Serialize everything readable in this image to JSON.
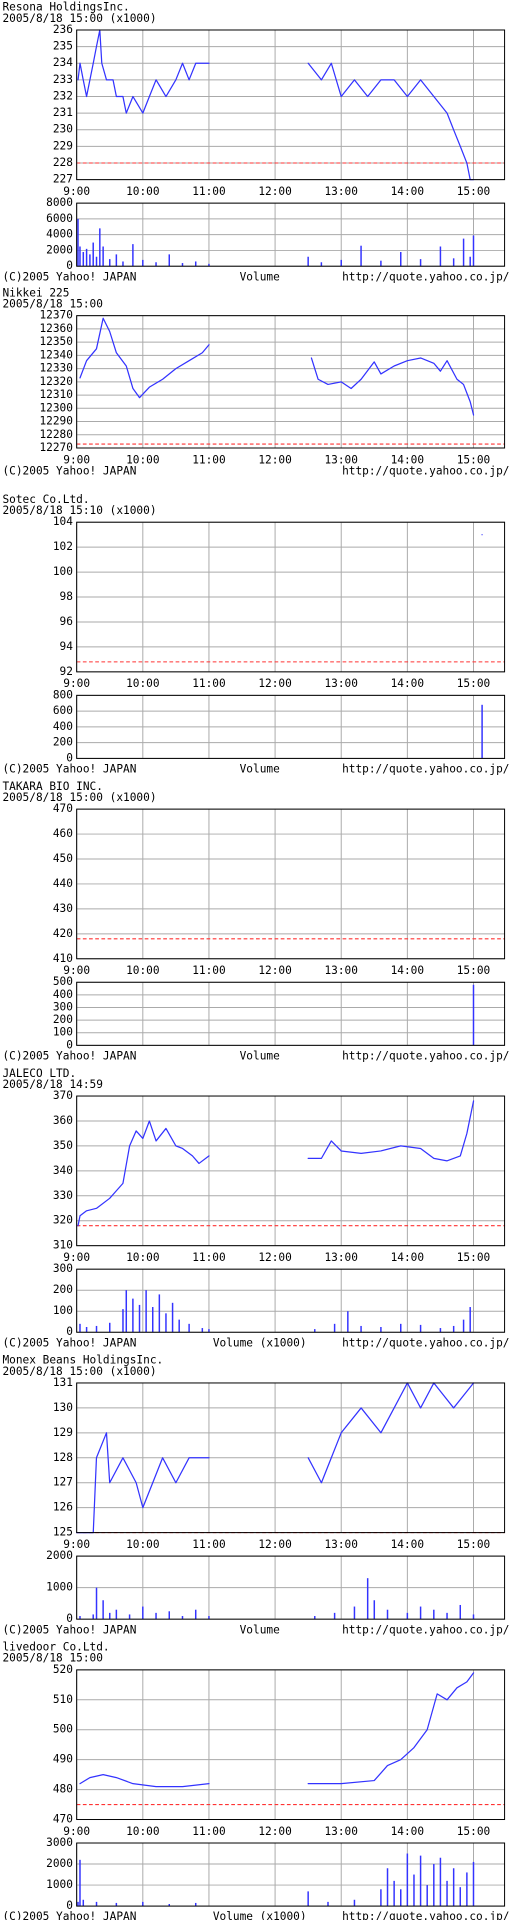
{
  "chart_data": [
    {
      "type": "line",
      "title": "Resona  HoldingsInc.",
      "subtitle": "2005/8/18 15:00  (x1000)",
      "grid": true,
      "color": "#3333ff",
      "reference_line": 228,
      "reference_color": "#ff3333",
      "xlim": [
        9,
        15.47
      ],
      "xticks": [
        {
          "value": 9,
          "label": "9:00"
        },
        {
          "value": 10,
          "label": "10:00"
        },
        {
          "value": 11,
          "label": "11:00"
        },
        {
          "value": 12,
          "label": "12:00"
        },
        {
          "value": 13,
          "label": "13:00"
        },
        {
          "value": 14,
          "label": "14:00"
        },
        {
          "value": 15,
          "label": "15:00"
        }
      ],
      "ylim": [
        227,
        236
      ],
      "yticks": [
        227,
        228,
        229,
        230,
        231,
        232,
        233,
        234,
        235,
        236
      ],
      "x": [
        9.02,
        9.05,
        9.1,
        9.15,
        9.2,
        9.25,
        9.3,
        9.35,
        9.38,
        9.45,
        9.55,
        9.6,
        9.7,
        9.75,
        9.85,
        10.0,
        10.1,
        10.2,
        10.35,
        10.5,
        10.6,
        10.7,
        10.8,
        11.0,
        null,
        12.5,
        12.7,
        12.85,
        13.0,
        13.2,
        13.4,
        13.6,
        13.8,
        14.0,
        14.2,
        14.4,
        14.6,
        14.7,
        14.8,
        14.9,
        14.95,
        15.0
      ],
      "values": [
        233,
        234,
        233,
        232,
        233,
        234,
        235,
        236,
        234,
        233,
        233,
        232,
        232,
        231,
        232,
        231,
        232,
        233,
        232,
        233,
        234,
        233,
        234,
        234,
        null,
        234,
        233,
        234,
        232,
        233,
        232,
        233,
        233,
        232,
        233,
        232,
        231,
        230,
        229,
        228,
        227,
        227
      ]
    },
    {
      "type": "bar",
      "xlabel": "Volume",
      "source": "(C)2005 Yahoo! JAPAN",
      "url": "http://quote.yahoo.co.jp/",
      "grid": true,
      "color": "#3333ff",
      "xlim": [
        9,
        15.47
      ],
      "xticks": [
        9,
        10,
        11,
        12,
        13,
        14,
        15
      ],
      "ylim": [
        0,
        8000
      ],
      "yticks": [
        0,
        2000,
        4000,
        6000,
        8000
      ],
      "x": [
        9.02,
        9.05,
        9.1,
        9.15,
        9.2,
        9.25,
        9.3,
        9.35,
        9.4,
        9.5,
        9.6,
        9.7,
        9.85,
        10.0,
        10.2,
        10.4,
        10.6,
        10.8,
        11.0,
        12.5,
        12.7,
        13.0,
        13.3,
        13.6,
        13.9,
        14.2,
        14.5,
        14.7,
        14.85,
        14.95,
        15.0
      ],
      "values": [
        6000,
        2500,
        1800,
        2200,
        1500,
        3000,
        1200,
        4800,
        2500,
        900,
        1500,
        600,
        2800,
        800,
        500,
        1500,
        400,
        600,
        300,
        1200,
        500,
        800,
        2600,
        700,
        1800,
        900,
        2500,
        1000,
        3500,
        1200,
        3900
      ]
    },
    {
      "type": "line",
      "title": "Nikkei 225",
      "subtitle": "2005/8/18 15:00",
      "source": "(C)2005 Yahoo! JAPAN",
      "url": "http://quote.yahoo.co.jp/",
      "grid": true,
      "color": "#3333ff",
      "reference_line": 12273,
      "reference_color": "#ff3333",
      "xlim": [
        9,
        15.47
      ],
      "xticks": [
        {
          "value": 9,
          "label": "9:00"
        },
        {
          "value": 10,
          "label": "10:00"
        },
        {
          "value": 11,
          "label": "11:00"
        },
        {
          "value": 12,
          "label": "12:00"
        },
        {
          "value": 13,
          "label": "13:00"
        },
        {
          "value": 14,
          "label": "14:00"
        },
        {
          "value": 15,
          "label": "15:00"
        }
      ],
      "ylim": [
        12270,
        12370
      ],
      "yticks": [
        12270,
        12280,
        12290,
        12300,
        12310,
        12320,
        12330,
        12340,
        12350,
        12360,
        12370
      ],
      "x": [
        9.05,
        9.15,
        9.3,
        9.4,
        9.5,
        9.6,
        9.75,
        9.85,
        9.95,
        10.1,
        10.3,
        10.5,
        10.7,
        10.9,
        11.0,
        null,
        12.55,
        12.65,
        12.8,
        13.0,
        13.15,
        13.3,
        13.5,
        13.6,
        13.8,
        14.0,
        14.2,
        14.4,
        14.5,
        14.6,
        14.75,
        14.85,
        14.95,
        15.0
      ],
      "values": [
        12323,
        12336,
        12345,
        12368,
        12358,
        12342,
        12332,
        12315,
        12308,
        12316,
        12322,
        12330,
        12336,
        12342,
        12348,
        null,
        12338,
        12322,
        12318,
        12320,
        12315,
        12322,
        12335,
        12326,
        12332,
        12336,
        12338,
        12334,
        12328,
        12336,
        12322,
        12318,
        12305,
        12295
      ]
    },
    {
      "type": "line",
      "title": "Sotec  Co.Ltd.",
      "subtitle": "2005/8/18 15:10  (x1000)",
      "grid": true,
      "color": "#3333ff",
      "reference_line": 92.8,
      "reference_color": "#ff3333",
      "xlim": [
        9,
        15.47
      ],
      "xticks": [
        {
          "value": 9,
          "label": "9:00"
        },
        {
          "value": 10,
          "label": "10:00"
        },
        {
          "value": 11,
          "label": "11:00"
        },
        {
          "value": 12,
          "label": "12:00"
        },
        {
          "value": 13,
          "label": "13:00"
        },
        {
          "value": 14,
          "label": "14:00"
        },
        {
          "value": 15,
          "label": "15:00"
        }
      ],
      "ylim": [
        92,
        104
      ],
      "yticks": [
        92,
        94,
        96,
        98,
        100,
        102,
        104
      ],
      "x": [
        15.13
      ],
      "values": [
        103
      ]
    },
    {
      "type": "bar",
      "xlabel": "Volume",
      "source": "(C)2005 Yahoo! JAPAN",
      "url": "http://quote.yahoo.co.jp/",
      "grid": true,
      "color": "#3333ff",
      "xlim": [
        9,
        15.47
      ],
      "xticks": [
        9,
        10,
        11,
        12,
        13,
        14,
        15
      ],
      "ylim": [
        0,
        800
      ],
      "yticks": [
        0,
        200,
        400,
        600,
        800
      ],
      "x": [
        15.13
      ],
      "values": [
        680
      ]
    },
    {
      "type": "line",
      "title": "TAKARA  BIO  INC.",
      "subtitle": "2005/8/18 15:00  (x1000)",
      "grid": true,
      "color": "#3333ff",
      "reference_line": 418,
      "reference_color": "#ff3333",
      "xlim": [
        9,
        15.47
      ],
      "xticks": [
        {
          "value": 9,
          "label": "9:00"
        },
        {
          "value": 10,
          "label": "10:00"
        },
        {
          "value": 11,
          "label": "11:00"
        },
        {
          "value": 12,
          "label": "12:00"
        },
        {
          "value": 13,
          "label": "13:00"
        },
        {
          "value": 14,
          "label": "14:00"
        },
        {
          "value": 15,
          "label": "15:00"
        }
      ],
      "ylim": [
        410,
        470
      ],
      "yticks": [
        410,
        420,
        430,
        440,
        450,
        460,
        470
      ]
    },
    {
      "type": "bar",
      "xlabel": "Volume",
      "source": "(C)2005 Yahoo! JAPAN",
      "url": "http://quote.yahoo.co.jp/",
      "grid": true,
      "color": "#3333ff",
      "xlim": [
        9,
        15.47
      ],
      "xticks": [
        9,
        10,
        11,
        12,
        13,
        14,
        15
      ],
      "ylim": [
        0,
        500
      ],
      "yticks": [
        0,
        100,
        200,
        300,
        400,
        500
      ],
      "x": [
        15.0
      ],
      "values": [
        480
      ]
    },
    {
      "type": "line",
      "title": "JALECO  LTD.",
      "subtitle": "2005/8/18 14:59",
      "grid": true,
      "color": "#3333ff",
      "reference_line": 318,
      "reference_color": "#ff3333",
      "xlim": [
        9,
        15.47
      ],
      "xticks": [
        {
          "value": 9,
          "label": "9:00"
        },
        {
          "value": 10,
          "label": "10:00"
        },
        {
          "value": 11,
          "label": "11:00"
        },
        {
          "value": 12,
          "label": "12:00"
        },
        {
          "value": 13,
          "label": "13:00"
        },
        {
          "value": 14,
          "label": "14:00"
        },
        {
          "value": 15,
          "label": "15:00"
        }
      ],
      "ylim": [
        310,
        370
      ],
      "yticks": [
        310,
        320,
        330,
        340,
        350,
        360,
        370
      ],
      "x": [
        9.02,
        9.05,
        9.15,
        9.3,
        9.5,
        9.6,
        9.7,
        9.8,
        9.9,
        10.0,
        10.1,
        10.2,
        10.35,
        10.5,
        10.6,
        10.75,
        10.85,
        11.0,
        null,
        12.5,
        12.7,
        12.85,
        13.0,
        13.3,
        13.6,
        13.9,
        14.2,
        14.4,
        14.6,
        14.8,
        14.9,
        15.0
      ],
      "values": [
        318,
        322,
        324,
        325,
        329,
        332,
        335,
        350,
        356,
        353,
        360,
        352,
        357,
        350,
        349,
        346,
        343,
        346,
        null,
        345,
        345,
        352,
        348,
        347,
        348,
        350,
        349,
        345,
        344,
        346,
        355,
        368
      ]
    },
    {
      "type": "bar",
      "xlabel": "Volume (x1000)",
      "source": "(C)2005 Yahoo! JAPAN",
      "url": "http://quote.yahoo.co.jp/",
      "grid": true,
      "color": "#3333ff",
      "xlim": [
        9,
        15.47
      ],
      "xticks": [
        9,
        10,
        11,
        12,
        13,
        14,
        15
      ],
      "ylim": [
        0,
        300
      ],
      "yticks": [
        0,
        100,
        200,
        300
      ],
      "x": [
        9.05,
        9.15,
        9.3,
        9.5,
        9.7,
        9.75,
        9.85,
        9.95,
        10.05,
        10.15,
        10.25,
        10.35,
        10.45,
        10.55,
        10.7,
        10.9,
        11.0,
        12.6,
        12.9,
        13.1,
        13.3,
        13.6,
        13.9,
        14.2,
        14.5,
        14.7,
        14.85,
        14.95
      ],
      "values": [
        40,
        25,
        30,
        45,
        110,
        200,
        160,
        130,
        200,
        120,
        180,
        90,
        140,
        60,
        40,
        20,
        15,
        15,
        40,
        100,
        30,
        25,
        40,
        35,
        20,
        30,
        60,
        120
      ]
    },
    {
      "type": "line",
      "title": "Monex  Beans  HoldingsInc.",
      "subtitle": "2005/8/18 15:00  (x1000)",
      "grid": true,
      "color": "#3333ff",
      "reference_line": 125,
      "reference_color": "#ff3333",
      "xlim": [
        9,
        15.47
      ],
      "xticks": [
        {
          "value": 9,
          "label": "9:00"
        },
        {
          "value": 10,
          "label": "10:00"
        },
        {
          "value": 11,
          "label": "11:00"
        },
        {
          "value": 12,
          "label": "12:00"
        },
        {
          "value": 13,
          "label": "13:00"
        },
        {
          "value": 14,
          "label": "14:00"
        },
        {
          "value": 15,
          "label": "15:00"
        }
      ],
      "ylim": [
        125,
        131
      ],
      "yticks": [
        125,
        126,
        127,
        128,
        129,
        130,
        131
      ],
      "x": [
        9.0,
        9.25,
        9.3,
        9.45,
        9.5,
        9.7,
        9.9,
        10.0,
        10.15,
        10.3,
        10.5,
        10.7,
        11.0,
        null,
        12.5,
        12.7,
        12.85,
        13.0,
        13.3,
        13.6,
        13.8,
        14.0,
        14.2,
        14.4,
        14.7,
        15.0
      ],
      "values": [
        125,
        125,
        128,
        129,
        127,
        128,
        127,
        126,
        127,
        128,
        127,
        128,
        128,
        null,
        128,
        127,
        128,
        129,
        130,
        129,
        130,
        131,
        130,
        131,
        130,
        131
      ]
    },
    {
      "type": "bar",
      "xlabel": "Volume",
      "source": "(C)2005 Yahoo! JAPAN",
      "url": "http://quote.yahoo.co.jp/",
      "grid": true,
      "color": "#3333ff",
      "xlim": [
        9,
        15.47
      ],
      "xticks": [
        9,
        10,
        11,
        12,
        13,
        14,
        15
      ],
      "ylim": [
        0,
        2000
      ],
      "yticks": [
        0,
        1000,
        2000
      ],
      "x": [
        9.05,
        9.25,
        9.3,
        9.4,
        9.5,
        9.6,
        9.8,
        10.0,
        10.2,
        10.4,
        10.6,
        10.8,
        11.0,
        12.6,
        12.9,
        13.2,
        13.4,
        13.5,
        13.7,
        14.0,
        14.2,
        14.4,
        14.6,
        14.8,
        15.0
      ],
      "values": [
        100,
        150,
        1000,
        600,
        200,
        300,
        150,
        400,
        200,
        250,
        100,
        300,
        100,
        100,
        200,
        400,
        1300,
        600,
        300,
        200,
        400,
        300,
        200,
        450,
        150
      ]
    },
    {
      "type": "line",
      "title": "livedoor  Co.Ltd.",
      "subtitle": "2005/8/18 15:00",
      "grid": true,
      "color": "#3333ff",
      "reference_line": 475,
      "reference_color": "#ff3333",
      "xlim": [
        9,
        15.47
      ],
      "xticks": [
        {
          "value": 9,
          "label": "9:00"
        },
        {
          "value": 10,
          "label": "10:00"
        },
        {
          "value": 11,
          "label": "11:00"
        },
        {
          "value": 12,
          "label": "12:00"
        },
        {
          "value": 13,
          "label": "13:00"
        },
        {
          "value": 14,
          "label": "14:00"
        },
        {
          "value": 15,
          "label": "15:00"
        }
      ],
      "ylim": [
        470,
        520
      ],
      "yticks": [
        470,
        480,
        490,
        500,
        510,
        520
      ],
      "x": [
        9.05,
        9.2,
        9.4,
        9.6,
        9.85,
        10.2,
        10.6,
        11.0,
        null,
        12.5,
        13.0,
        13.5,
        13.7,
        13.9,
        14.1,
        14.3,
        14.45,
        14.6,
        14.75,
        14.9,
        15.0
      ],
      "values": [
        482,
        484,
        485,
        484,
        482,
        481,
        481,
        482,
        null,
        482,
        482,
        483,
        488,
        490,
        494,
        500,
        512,
        510,
        514,
        516,
        519
      ]
    },
    {
      "type": "bar",
      "xlabel": "Volume (x1000)",
      "source": "(C)2005 Yahoo! JAPAN",
      "url": "http://quote.yahoo.co.jp/",
      "grid": true,
      "color": "#3333ff",
      "xlim": [
        9,
        15.47
      ],
      "xticks": [
        9,
        10,
        11,
        12,
        13,
        14,
        15
      ],
      "ylim": [
        0,
        3000
      ],
      "yticks": [
        0,
        1000,
        2000,
        3000
      ],
      "x": [
        9.02,
        9.05,
        9.1,
        9.3,
        9.6,
        10.0,
        10.4,
        10.8,
        12.5,
        12.8,
        13.2,
        13.6,
        13.7,
        13.8,
        13.9,
        14.0,
        14.1,
        14.2,
        14.3,
        14.4,
        14.5,
        14.6,
        14.7,
        14.8,
        14.9,
        15.0
      ],
      "values": [
        200,
        2200,
        300,
        200,
        150,
        200,
        100,
        150,
        700,
        200,
        300,
        800,
        1800,
        1200,
        800,
        2500,
        1500,
        2400,
        1000,
        2000,
        2300,
        1200,
        1800,
        900,
        1600,
        2100
      ]
    }
  ]
}
